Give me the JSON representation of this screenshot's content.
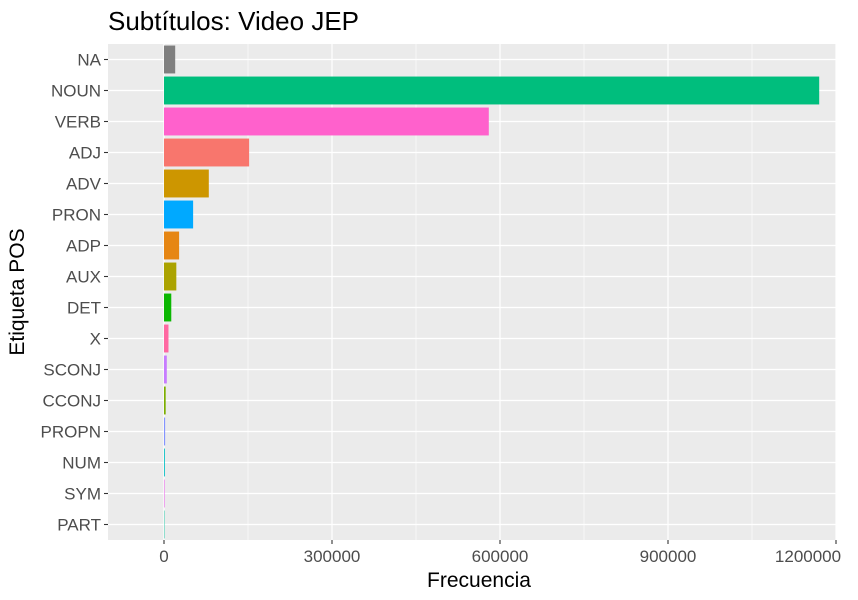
{
  "chart_data": {
    "type": "bar",
    "orientation": "horizontal",
    "title": "Subtítulos: Video JEP",
    "xlabel": "Frecuencia",
    "ylabel": "Etiqueta POS",
    "xlim": [
      -100000,
      1200000
    ],
    "x_ticks": [
      0,
      300000,
      600000,
      900000,
      1200000
    ],
    "x_tick_labels": [
      "0",
      "300000",
      "600000",
      "900000",
      "1200000"
    ],
    "grid": true,
    "legend": "none",
    "panel_background": "#ebebeb",
    "grid_color": "#ffffff",
    "categories": [
      "NA",
      "NOUN",
      "VERB",
      "ADJ",
      "ADV",
      "PRON",
      "ADP",
      "AUX",
      "DET",
      "X",
      "SCONJ",
      "CCONJ",
      "PROPN",
      "NUM",
      "SYM",
      "PART"
    ],
    "values": [
      20000,
      1170000,
      580000,
      152000,
      80000,
      52000,
      27000,
      22000,
      13000,
      8000,
      5000,
      3000,
      2000,
      1500,
      1000,
      300
    ],
    "colors": [
      "#7f7f7f",
      "#00be7d",
      "#ff61cc",
      "#f8766d",
      "#cd9600",
      "#00a9ff",
      "#e68613",
      "#aba300",
      "#0cb702",
      "#ff68a1",
      "#c77cff",
      "#7cae00",
      "#8494ff",
      "#00bfc4",
      "#ed68ed",
      "#00c19a"
    ]
  }
}
